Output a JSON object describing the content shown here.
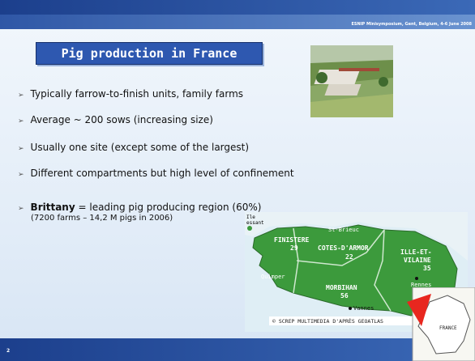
{
  "header": {
    "event": "ESNIP Minisymposium, Gent, Belgium, 4-6 June 2008"
  },
  "title": "Pig production in France",
  "bullets": [
    "Typically farrow-to-finish units, family farms",
    "Average ~ 200 sows (increasing size)",
    "Usually one site (except some of the largest)",
    "Different compartments but high level of confinement"
  ],
  "brittany": {
    "bold": "Brittany",
    "text": " = leading pig producing region (60%)",
    "sub": "(7200 farms – 14,2 M pigs in 2006)"
  },
  "map": {
    "island": [
      "Ile",
      "essant"
    ],
    "departments": [
      {
        "name": "FINISTERE",
        "number": "29"
      },
      {
        "name": "COTES-D'ARMOR",
        "number": "22"
      },
      {
        "name": "ILLE-ET-",
        "name2": "VILAINE",
        "number": "35"
      },
      {
        "name": "MORBIHAN",
        "number": "56"
      }
    ],
    "towns": [
      "St-Brieuc",
      "Rennes",
      "Quimper",
      "Vannes"
    ],
    "credit": "© SCREP MULTIMEDIA D'APRÈS GEOATLAS",
    "inset": "FRANCE"
  },
  "footer": {
    "page": "2"
  }
}
